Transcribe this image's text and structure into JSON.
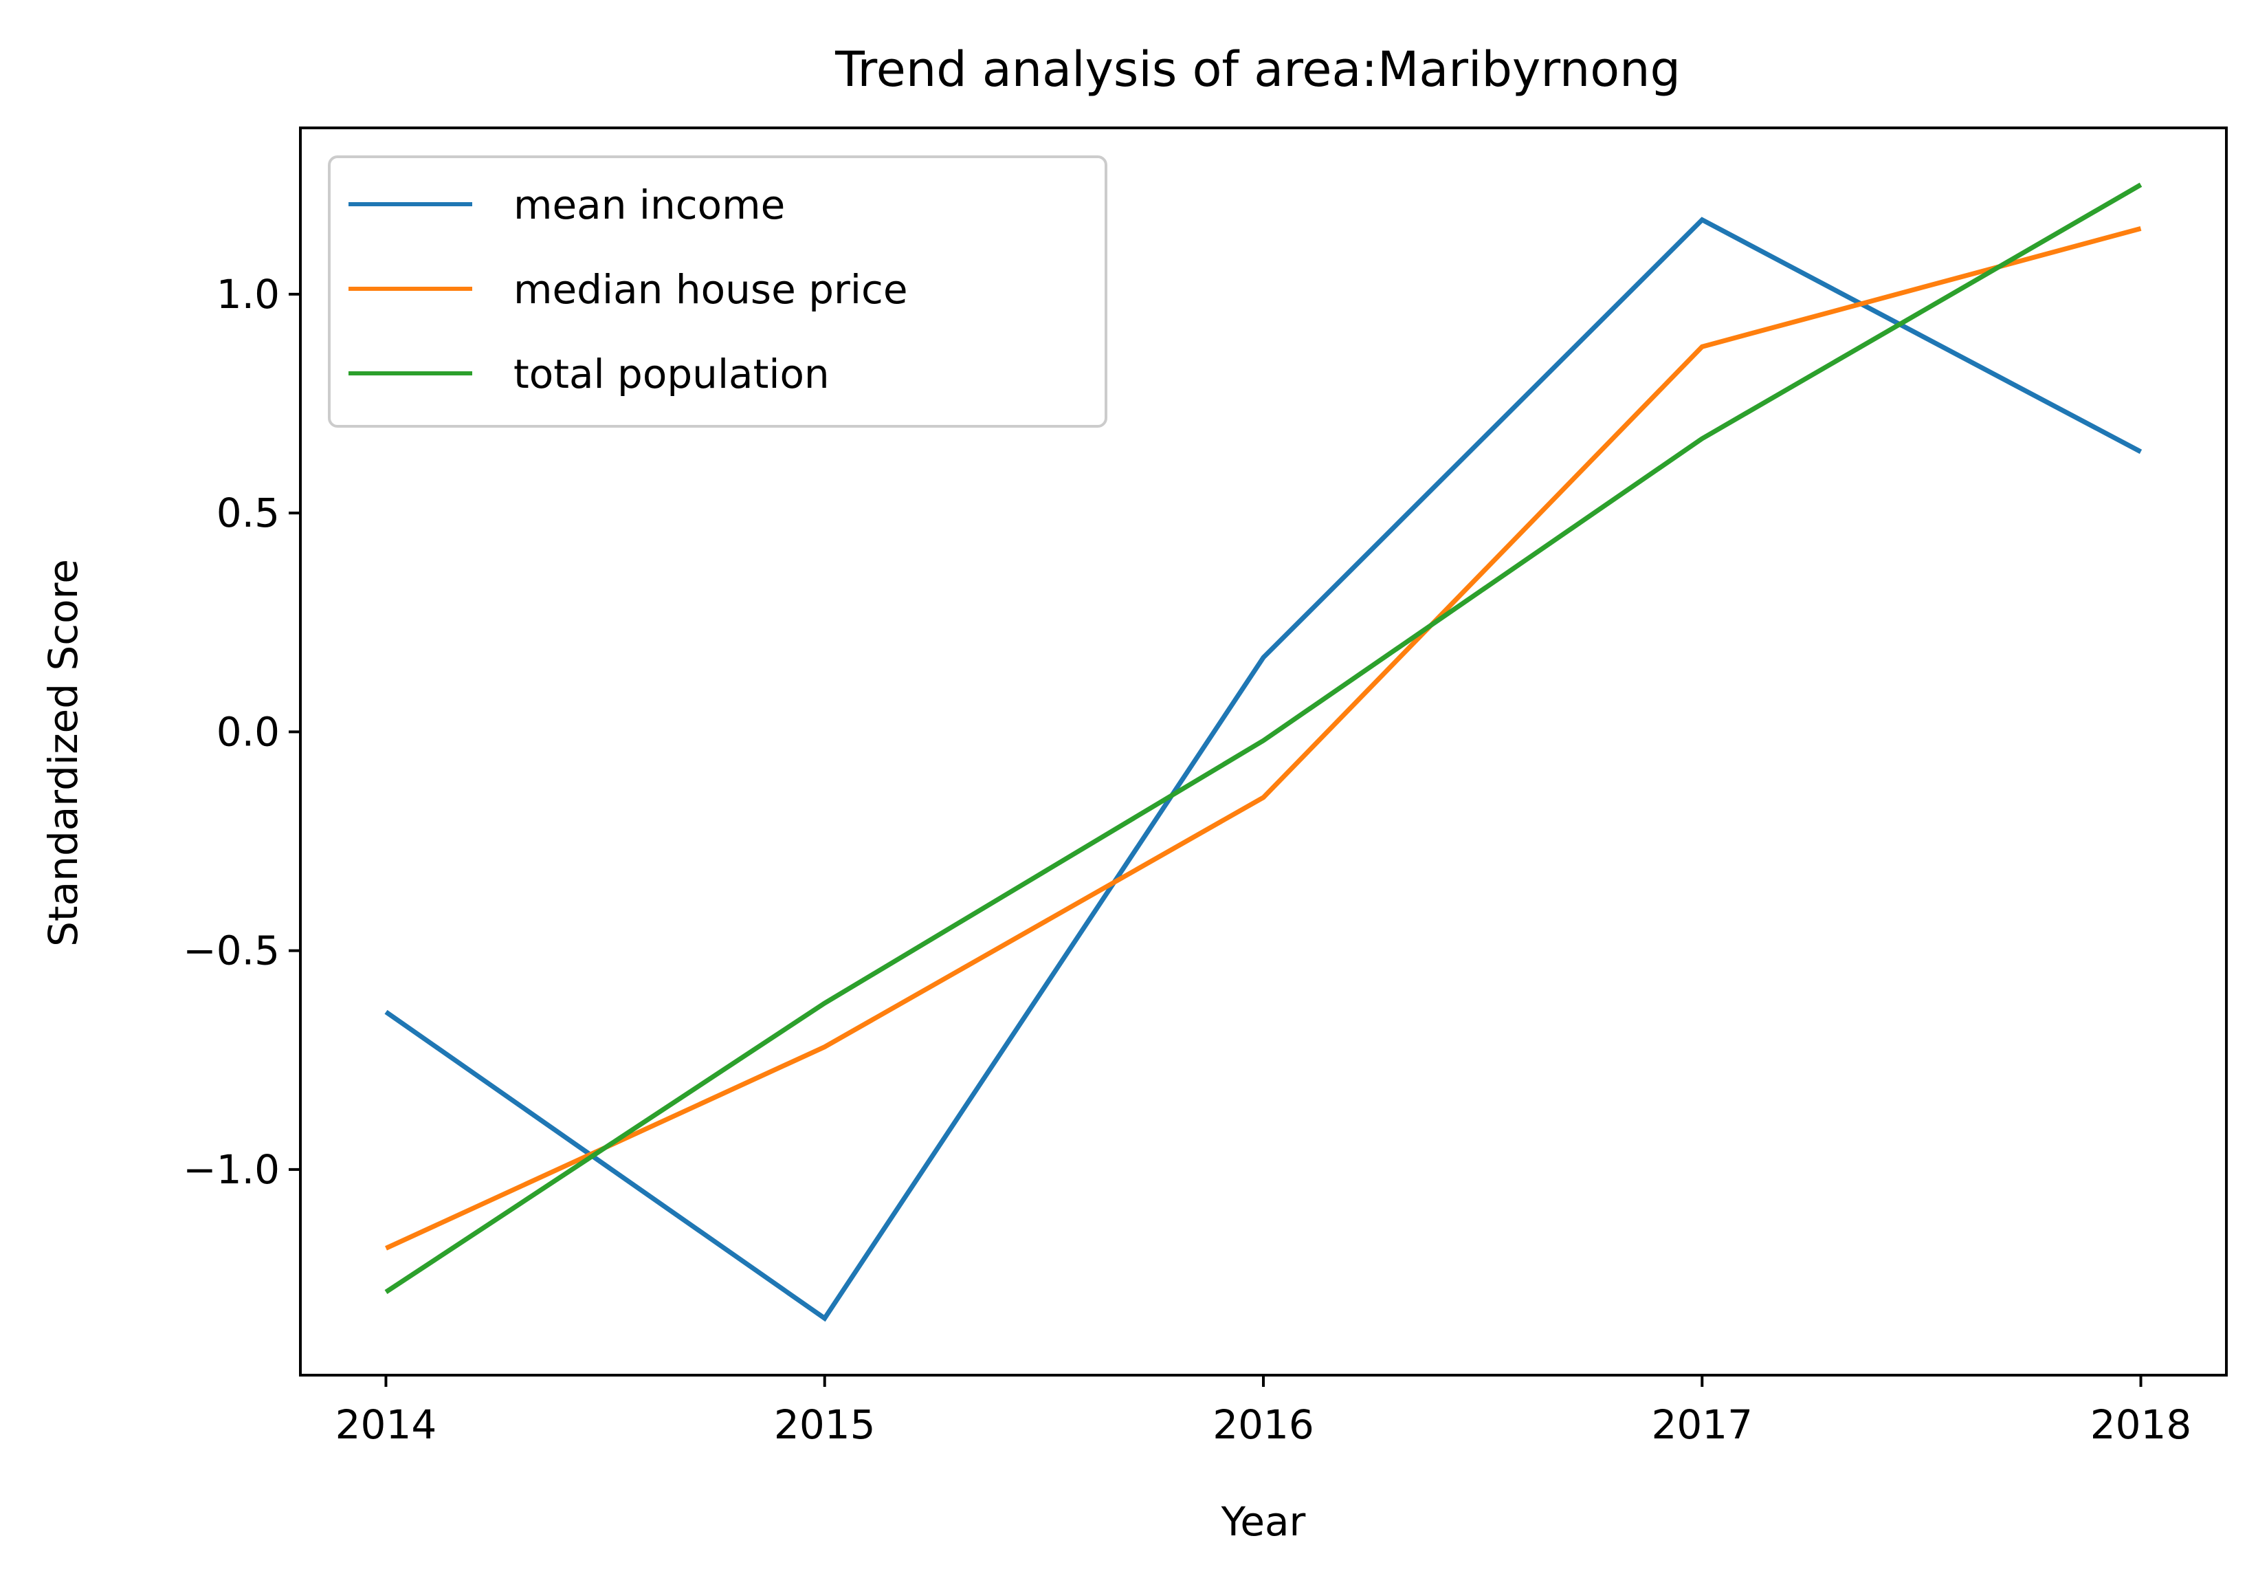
{
  "chart_data": {
    "type": "line",
    "title": "Trend analysis of area:Maribyrnong",
    "xlabel": "Year",
    "ylabel": "Standardized Score",
    "x": [
      "2014",
      "2015",
      "2016",
      "2017",
      "2018"
    ],
    "series": [
      {
        "name": "mean income",
        "color": "#1f77b4",
        "values": [
          -0.64,
          -1.34,
          0.17,
          1.17,
          0.64
        ]
      },
      {
        "name": "median house price",
        "color": "#ff7f0e",
        "values": [
          -1.18,
          -0.72,
          -0.15,
          0.88,
          1.15
        ]
      },
      {
        "name": "total population",
        "color": "#2ca02c",
        "values": [
          -1.28,
          -0.62,
          -0.02,
          0.67,
          1.25
        ]
      }
    ],
    "xlim": [
      2013.805,
      2018.195
    ],
    "ylim": [
      -1.47,
      1.38
    ],
    "yticks": [
      1.0,
      0.5,
      0.0,
      -0.5,
      -1.0
    ],
    "ytick_labels": [
      "1.0",
      "0.5",
      "0.0",
      "−0.5",
      "−1.0"
    ],
    "xtick_labels": [
      "2014",
      "2015",
      "2016",
      "2017",
      "2018"
    ],
    "grid": false,
    "legend_position": "top-left"
  }
}
